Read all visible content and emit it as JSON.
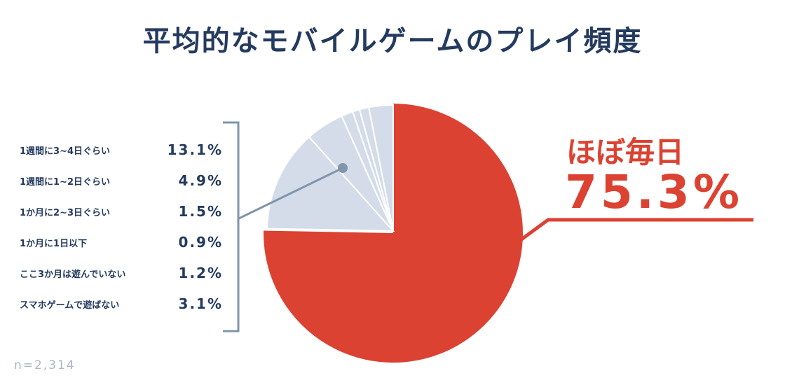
{
  "title": "平均的なモバイルゲームのプレイ頻度",
  "note": "n=2,314",
  "callout": {
    "label": "ほぼ毎日",
    "value": "75.3%"
  },
  "legend": [
    {
      "label": "1週間に3~4日ぐらい",
      "value": "13.1%"
    },
    {
      "label": "1週間に1~2日ぐらい",
      "value": "4.9%"
    },
    {
      "label": "1か月に2~3日ぐらい",
      "value": "1.5%"
    },
    {
      "label": "1か月に1日以下",
      "value": "0.9%"
    },
    {
      "label": "ここ3か月は遊んでいない",
      "value": "1.2%"
    },
    {
      "label": "スマホゲームで遊ばない",
      "value": "3.1%"
    }
  ],
  "chart_data": {
    "type": "pie",
    "categories": [
      "ほぼ毎日",
      "1週間に3~4日ぐらい",
      "1週間に1~2日ぐらい",
      "1か月に2~3日ぐらい",
      "1か月に1日以下",
      "ここ3か月は遊んでいない",
      "スマホゲームで遊ばない"
    ],
    "values": [
      75.3,
      13.1,
      4.9,
      1.5,
      0.9,
      1.2,
      3.1
    ],
    "colors": [
      "#db4232",
      "#d3dce8",
      "#d3dce8",
      "#d3dce8",
      "#d3dce8",
      "#d3dce8",
      "#d3dce8"
    ],
    "note": "n=2,314"
  },
  "colors": {
    "primary": "#db4232",
    "navy": "#243a5e",
    "slice": "#d3dce8",
    "line": "#8294ab"
  }
}
